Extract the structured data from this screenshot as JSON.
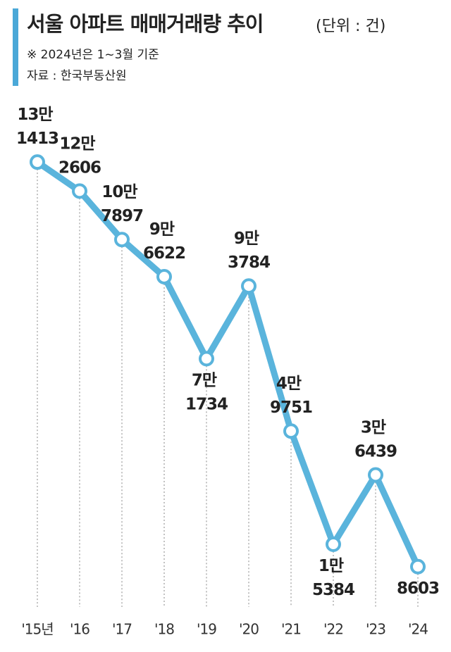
{
  "chart_data": {
    "type": "line",
    "title": "서울 아파트 매매거래량 추이",
    "unit": "(단위 : 건)",
    "note": "※ 2024년은 1~3월 기준",
    "source": "자료 : 한국부동산원",
    "categories": [
      "'15년",
      "'16",
      "'17",
      "'18",
      "'19",
      "'20",
      "'21",
      "'22",
      "'23",
      "'24"
    ],
    "values": [
      131413,
      122606,
      107897,
      96622,
      71734,
      93784,
      49751,
      15384,
      36439,
      8603
    ],
    "value_labels": [
      "13만 1413",
      "12만 2606",
      "10만 7897",
      "9만 6622",
      "7만 1734",
      "9만 3784",
      "4만 9751",
      "1만 5384",
      "3만 6439",
      "8603"
    ],
    "color": "#5ab4dc",
    "ylim": [
      0,
      140000
    ]
  }
}
